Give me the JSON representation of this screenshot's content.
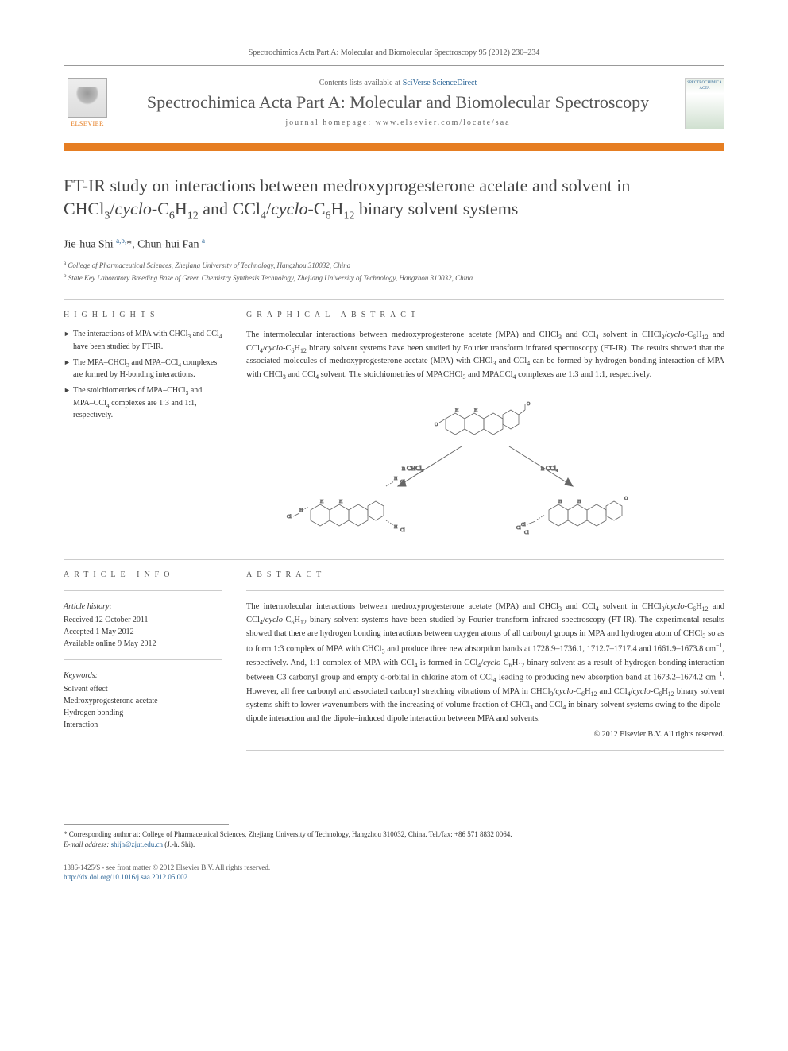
{
  "journal_ref": "Spectrochimica Acta Part A: Molecular and Biomolecular Spectroscopy 95 (2012) 230–234",
  "header": {
    "contents_prefix": "Contents lists available at ",
    "contents_link": "SciVerse ScienceDirect",
    "journal_name": "Spectrochimica Acta Part A: Molecular and Biomolecular Spectroscopy",
    "homepage_label": "journal homepage: www.elsevier.com/locate/saa",
    "publisher": "ELSEVIER",
    "cover_text": "SPECTROCHIMICA ACTA"
  },
  "title_html": "FT-IR study on interactions between medroxyprogesterone acetate and solvent in CHCl<sub>3</sub>/<em>cyclo</em>-C<sub>6</sub>H<sub>12</sub> and CCl<sub>4</sub>/<em>cyclo</em>-C<sub>6</sub>H<sub>12</sub> binary solvent systems",
  "authors_html": "Jie-hua Shi <sup>a,b,</sup>*, Chun-hui Fan <sup>a</sup>",
  "affiliations": [
    "a College of Pharmaceutical Sciences, Zhejiang University of Technology, Hangzhou 310032, China",
    "b State Key Laboratory Breeding Base of Green Chemistry Synthesis Technology, Zhejiang University of Technology, Hangzhou 310032, China"
  ],
  "highlights": {
    "heading": "HIGHLIGHTS",
    "items_html": [
      "The interactions of MPA with CHCl<sub>3</sub> and CCl<sub>4</sub> have been studied by FT-IR.",
      "The MPA–CHCl<sub>3</sub> and MPA–CCl<sub>4</sub> complexes are formed by H-bonding interactions.",
      "The stoichiometries of MPA–CHCl<sub>3</sub> and MPA–CCl<sub>4</sub> complexes are 1:3 and 1:1, respectively."
    ]
  },
  "graphical_abstract": {
    "heading": "GRAPHICAL ABSTRACT",
    "text_html": "The intermolecular interactions between medroxyprogesterone acetate (MPA) and CHCl<sub>3</sub> and CCl<sub>4</sub> solvent in CHCl<sub>3</sub>/<em>cyclo</em>-C<sub>6</sub>H<sub>12</sub> and CCl<sub>4</sub>/<em>cyclo</em>-C<sub>6</sub>H<sub>12</sub> binary solvent systems have been studied by Fourier transform infrared spectroscopy (FT-IR). The results showed that the associated molecules of medroxyprogesterone acetate (MPA) with CHCl<sub>3</sub> and CCl<sub>4</sub> can be formed by hydrogen bonding interaction of MPA with CHCl<sub>3</sub> and CCl<sub>4</sub> solvent. The stoichiometries of MPACHCl<sub>3</sub> and MPACCl<sub>4</sub> complexes are 1:3 and 1:1, respectively.",
    "scheme_labels": {
      "left_arrow": "n CHCl3",
      "right_arrow": "n CCl4"
    }
  },
  "article_info": {
    "heading": "ARTICLE INFO",
    "history_head": "Article history:",
    "history": [
      "Received 12 October 2011",
      "Accepted 1 May 2012",
      "Available online 9 May 2012"
    ],
    "keywords_head": "Keywords:",
    "keywords": [
      "Solvent effect",
      "Medroxyprogesterone acetate",
      "Hydrogen bonding",
      "Interaction"
    ]
  },
  "abstract": {
    "heading": "ABSTRACT",
    "text_html": "The intermolecular interactions between medroxyprogesterone acetate (MPA) and CHCl<sub>3</sub> and CCl<sub>4</sub> solvent in CHCl<sub>3</sub>/<em>cyclo</em>-C<sub>6</sub>H<sub>12</sub> and CCl<sub>4</sub>/<em>cyclo</em>-C<sub>6</sub>H<sub>12</sub> binary solvent systems have been studied by Fourier transform infrared spectroscopy (FT-IR). The experimental results showed that there are hydrogen bonding interactions between oxygen atoms of all carbonyl groups in MPA and hydrogen atom of CHCl<sub>3</sub> so as to form 1:3 complex of MPA with CHCl<sub>3</sub> and produce three new absorption bands at 1728.9–1736.1, 1712.7–1717.4 and 1661.9–1673.8 cm<sup>−1</sup>, respectively. And, 1:1 complex of MPA with CCl<sub>4</sub> is formed in CCl<sub>4</sub>/<em>cyclo</em>-C<sub>6</sub>H<sub>12</sub> binary solvent as a result of hydrogen bonding interaction between C3 carbonyl group and empty d-orbital in chlorine atom of CCl<sub>4</sub> leading to producing new absorption band at 1673.2–1674.2 cm<sup>−1</sup>. However, all free carbonyl and associated carbonyl stretching vibrations of MPA in CHCl<sub>3</sub>/<em>cyclo</em>-C<sub>6</sub>H<sub>12</sub> and CCl<sub>4</sub>/<em>cyclo</em>-C<sub>6</sub>H<sub>12</sub> binary solvent systems shift to lower wavenumbers with the increasing of volume fraction of CHCl<sub>3</sub> and CCl<sub>4</sub> in binary solvent systems owing to the dipole–dipole interaction and the dipole–induced dipole interaction between MPA and solvents.",
    "copyright": "© 2012 Elsevier B.V. All rights reserved."
  },
  "footnote": {
    "corresponding": "* Corresponding author at: College of Pharmaceutical Sciences, Zhejiang University of Technology, Hangzhou 310032, China. Tel./fax: +86 571 8832 0064.",
    "email_label": "E-mail address:",
    "email": "shijh@zjut.edu.cn",
    "email_suffix": "(J.-h. Shi)."
  },
  "bottom": {
    "issn_line": "1386-1425/$ - see front matter © 2012 Elsevier B.V. All rights reserved.",
    "doi": "http://dx.doi.org/10.1016/j.saa.2012.05.002"
  },
  "colors": {
    "accent": "#e67e22",
    "link": "#2a6496",
    "text": "#333333",
    "rule": "#cccccc"
  }
}
